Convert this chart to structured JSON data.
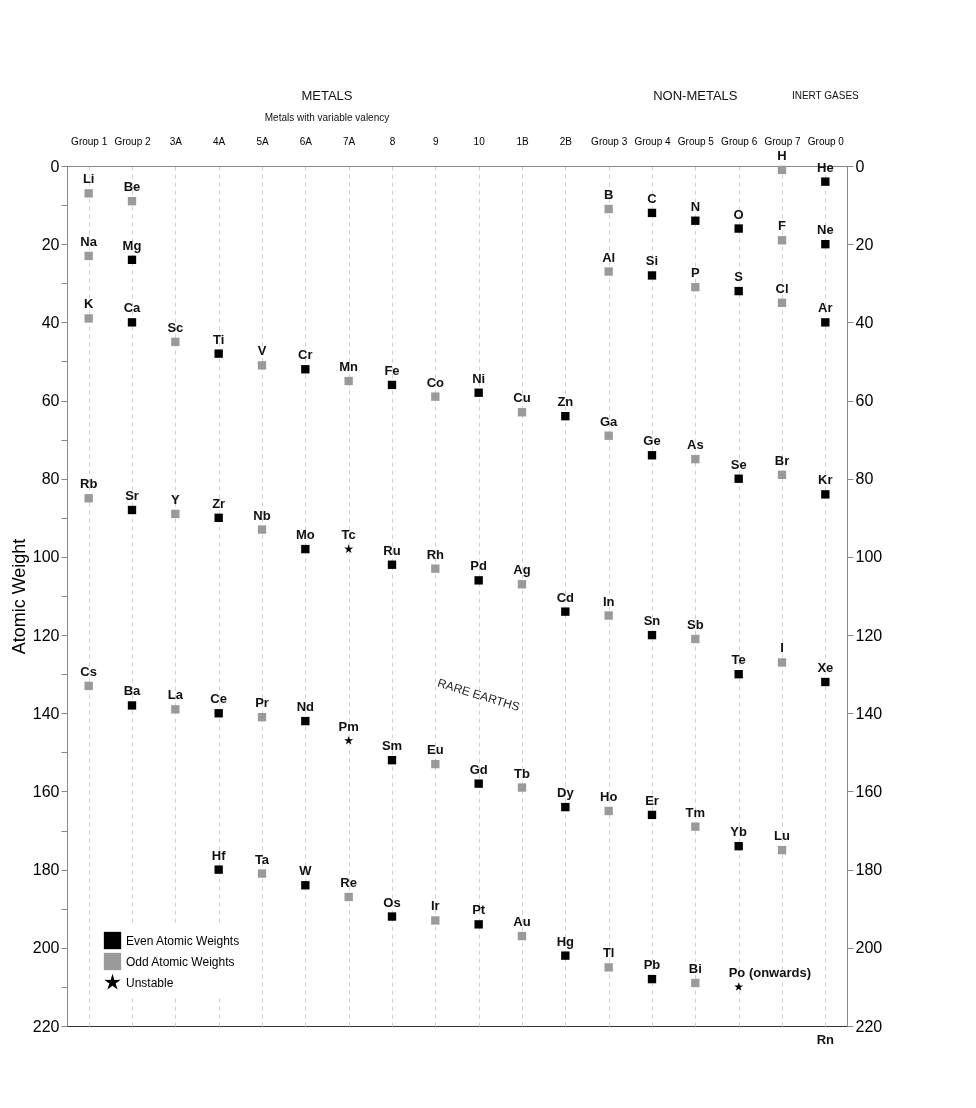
{
  "chart_data": {
    "type": "scatter",
    "ylabel": "Atomic Weight",
    "categories": [
      "Group 1",
      "Group 2",
      "3A",
      "4A",
      "5A",
      "6A",
      "7A",
      "8",
      "9",
      "10",
      "1B",
      "2B",
      "Group 3",
      "Group 4",
      "Group 5",
      "Group 6",
      "Group 7",
      "Group 0"
    ],
    "ylim": [
      220,
      0
    ],
    "yticks": [
      0,
      {
        "value": 10,
        "label": null
      },
      20,
      {
        "value": 30,
        "label": null
      },
      40,
      {
        "value": 50,
        "label": null
      },
      60,
      {
        "value": 70,
        "label": null
      },
      80,
      {
        "value": 90,
        "label": null
      },
      100,
      {
        "value": 110,
        "label": null
      },
      120,
      {
        "value": 130,
        "label": null
      },
      140,
      {
        "value": 150,
        "label": null
      },
      160,
      {
        "value": 170,
        "label": null
      },
      180,
      {
        "value": 190,
        "label": null
      },
      200,
      {
        "value": 210,
        "label": null
      },
      220
    ],
    "y2lim": [
      220,
      0
    ],
    "y2ticks": [
      0,
      {
        "value": 10,
        "label": null
      },
      20,
      {
        "value": 30,
        "label": null
      },
      40,
      {
        "value": 50,
        "label": null
      },
      60,
      {
        "value": 70,
        "label": null
      },
      80,
      {
        "value": 90,
        "label": null
      },
      100,
      {
        "value": 110,
        "label": null
      },
      120,
      {
        "value": 130,
        "label": null
      },
      140,
      {
        "value": 150,
        "label": null
      },
      160,
      {
        "value": 170,
        "label": null
      },
      180,
      {
        "value": 190,
        "label": null
      },
      200,
      {
        "value": 210,
        "label": null
      },
      220
    ],
    "grid": "x",
    "marker": "square",
    "legend": "bottom left",
    "series": [
      {
        "name": "Even Atomic Weights",
        "color": "#000000",
        "x": [
          "Group 2",
          "Group 2",
          "Group 2",
          "Group 2",
          "4A",
          "4A",
          "4A",
          "4A",
          "6A",
          "6A",
          "6A",
          "6A",
          "8",
          "8",
          "8",
          "8",
          "10",
          "10",
          "10",
          "10",
          "2B",
          "2B",
          "2B",
          "2B",
          "Group 4",
          "Group 4",
          "Group 4",
          "Group 4",
          "Group 4",
          "Group 4",
          "Group 5",
          "Group 6",
          "Group 6",
          "Group 6",
          "Group 6",
          "Group 6",
          "Group 0",
          "Group 0",
          "Group 0",
          "Group 0",
          "Group 0"
        ],
        "values": [
          24,
          40,
          88,
          138,
          48,
          90,
          140,
          180,
          52,
          98,
          142,
          184,
          56,
          102,
          152,
          192,
          58,
          106,
          158,
          194,
          64,
          114,
          164,
          202,
          12,
          28,
          74,
          120,
          166,
          208,
          14,
          16,
          32,
          80,
          130,
          174,
          4,
          20,
          40,
          84,
          132
        ]
      },
      {
        "name": "Odd Atomic Weights",
        "color": "#9a9a9a",
        "x": [
          "Group 1",
          "Group 1",
          "Group 1",
          "Group 1",
          "Group 1",
          "Group 2",
          "3A",
          "3A",
          "3A",
          "5A",
          "5A",
          "5A",
          "5A",
          "7A",
          "7A",
          "9",
          "9",
          "9",
          "9",
          "1B",
          "1B",
          "1B",
          "1B",
          "Group 3",
          "Group 3",
          "Group 3",
          "Group 3",
          "Group 3",
          "Group 3",
          "Group 5",
          "Group 5",
          "Group 5",
          "Group 5",
          "Group 5",
          "Group 7",
          "Group 7",
          "Group 7",
          "Group 7",
          "Group 7",
          "Group 7"
        ],
        "values": [
          7,
          23,
          39,
          85,
          133,
          9,
          45,
          89,
          139,
          51,
          93,
          141,
          181,
          55,
          187,
          59,
          103,
          153,
          193,
          63,
          107,
          159,
          197,
          11,
          27,
          69,
          115,
          165,
          205,
          31,
          75,
          121,
          169,
          209,
          1,
          19,
          35,
          79,
          127,
          175
        ]
      },
      {
        "name": "Unstable",
        "color": "#000000",
        "marker": "star",
        "x": [
          "7A",
          "7A",
          "Group 6"
        ],
        "values": [
          98,
          147,
          210
        ]
      }
    ],
    "annotations": [
      "METALS",
      "Metals with variable valency",
      "NON-METALS",
      "INERT GASES",
      "RARE EARTHS",
      "Rn",
      {
        "text": "Li",
        "x": "Group 1",
        "y": 7
      },
      {
        "text": "Na",
        "x": "Group 1",
        "y": 23
      },
      {
        "text": "K",
        "x": "Group 1",
        "y": 39
      },
      {
        "text": "Rb",
        "x": "Group 1",
        "y": 85
      },
      {
        "text": "Cs",
        "x": "Group 1",
        "y": 133
      },
      {
        "text": "Be",
        "x": "Group 2",
        "y": 9
      },
      {
        "text": "Mg",
        "x": "Group 2",
        "y": 24
      },
      {
        "text": "Ca",
        "x": "Group 2",
        "y": 40
      },
      {
        "text": "Sr",
        "x": "Group 2",
        "y": 88
      },
      {
        "text": "Ba",
        "x": "Group 2",
        "y": 138
      },
      {
        "text": "Sc",
        "x": "3A",
        "y": 45
      },
      {
        "text": "Y",
        "x": "3A",
        "y": 89
      },
      {
        "text": "La",
        "x": "3A",
        "y": 139
      },
      {
        "text": "Ti",
        "x": "4A",
        "y": 48
      },
      {
        "text": "Zr",
        "x": "4A",
        "y": 90
      },
      {
        "text": "Ce",
        "x": "4A",
        "y": 140
      },
      {
        "text": "Hf",
        "x": "4A",
        "y": 180
      },
      {
        "text": "V",
        "x": "5A",
        "y": 51
      },
      {
        "text": "Nb",
        "x": "5A",
        "y": 93
      },
      {
        "text": "Pr",
        "x": "5A",
        "y": 141
      },
      {
        "text": "Ta",
        "x": "5A",
        "y": 181
      },
      {
        "text": "Cr",
        "x": "6A",
        "y": 52
      },
      {
        "text": "Mo",
        "x": "6A",
        "y": 98
      },
      {
        "text": "Nd",
        "x": "6A",
        "y": 142
      },
      {
        "text": "W",
        "x": "6A",
        "y": 184
      },
      {
        "text": "Mn",
        "x": "7A",
        "y": 55
      },
      {
        "text": "Tc",
        "x": "7A",
        "y": 98
      },
      {
        "text": "Pm",
        "x": "7A",
        "y": 147
      },
      {
        "text": "Re",
        "x": "7A",
        "y": 187
      },
      {
        "text": "Fe",
        "x": "8",
        "y": 56
      },
      {
        "text": "Ru",
        "x": "8",
        "y": 102
      },
      {
        "text": "Sm",
        "x": "8",
        "y": 152
      },
      {
        "text": "Os",
        "x": "8",
        "y": 192
      },
      {
        "text": "Co",
        "x": "9",
        "y": 59
      },
      {
        "text": "Rh",
        "x": "9",
        "y": 103
      },
      {
        "text": "Eu",
        "x": "9",
        "y": 153
      },
      {
        "text": "Ir",
        "x": "9",
        "y": 193
      },
      {
        "text": "Ni",
        "x": "10",
        "y": 58
      },
      {
        "text": "Pd",
        "x": "10",
        "y": 106
      },
      {
        "text": "Gd",
        "x": "10",
        "y": 158
      },
      {
        "text": "Pt",
        "x": "10",
        "y": 194
      },
      {
        "text": "Cu",
        "x": "1B",
        "y": 63
      },
      {
        "text": "Ag",
        "x": "1B",
        "y": 107
      },
      {
        "text": "Tb",
        "x": "1B",
        "y": 159
      },
      {
        "text": "Au",
        "x": "1B",
        "y": 197
      },
      {
        "text": "Zn",
        "x": "2B",
        "y": 64
      },
      {
        "text": "Cd",
        "x": "2B",
        "y": 114
      },
      {
        "text": "Dy",
        "x": "2B",
        "y": 164
      },
      {
        "text": "Hg",
        "x": "2B",
        "y": 202
      },
      {
        "text": "B",
        "x": "Group 3",
        "y": 11
      },
      {
        "text": "Al",
        "x": "Group 3",
        "y": 27
      },
      {
        "text": "Ga",
        "x": "Group 3",
        "y": 69
      },
      {
        "text": "In",
        "x": "Group 3",
        "y": 115
      },
      {
        "text": "Ho",
        "x": "Group 3",
        "y": 165
      },
      {
        "text": "Tl",
        "x": "Group 3",
        "y": 205
      },
      {
        "text": "C",
        "x": "Group 4",
        "y": 12
      },
      {
        "text": "Si",
        "x": "Group 4",
        "y": 28
      },
      {
        "text": "Ge",
        "x": "Group 4",
        "y": 74
      },
      {
        "text": "Sn",
        "x": "Group 4",
        "y": 120
      },
      {
        "text": "Er",
        "x": "Group 4",
        "y": 166
      },
      {
        "text": "Pb",
        "x": "Group 4",
        "y": 208
      },
      {
        "text": "N",
        "x": "Group 5",
        "y": 14
      },
      {
        "text": "P",
        "x": "Group 5",
        "y": 31
      },
      {
        "text": "As",
        "x": "Group 5",
        "y": 75
      },
      {
        "text": "Sb",
        "x": "Group 5",
        "y": 121
      },
      {
        "text": "Tm",
        "x": "Group 5",
        "y": 169
      },
      {
        "text": "Bi",
        "x": "Group 5",
        "y": 209
      },
      {
        "text": "O",
        "x": "Group 6",
        "y": 16
      },
      {
        "text": "S",
        "x": "Group 6",
        "y": 32
      },
      {
        "text": "Se",
        "x": "Group 6",
        "y": 80
      },
      {
        "text": "Te",
        "x": "Group 6",
        "y": 130
      },
      {
        "text": "Yb",
        "x": "Group 6",
        "y": 174
      },
      {
        "text": "Po (onwards)",
        "x": "Group 6",
        "y": 210
      },
      {
        "text": "H",
        "x": "Group 7",
        "y": 1
      },
      {
        "text": "F",
        "x": "Group 7",
        "y": 19
      },
      {
        "text": "Cl",
        "x": "Group 7",
        "y": 35
      },
      {
        "text": "Br",
        "x": "Group 7",
        "y": 79
      },
      {
        "text": "I",
        "x": "Group 7",
        "y": 127
      },
      {
        "text": "Lu",
        "x": "Group 7",
        "y": 175
      },
      {
        "text": "He",
        "x": "Group 0",
        "y": 4
      },
      {
        "text": "Ne",
        "x": "Group 0",
        "y": 20
      },
      {
        "text": "Ar",
        "x": "Group 0",
        "y": 40
      },
      {
        "text": "Kr",
        "x": "Group 0",
        "y": 84
      },
      {
        "text": "Xe",
        "x": "Group 0",
        "y": 132
      }
    ]
  }
}
